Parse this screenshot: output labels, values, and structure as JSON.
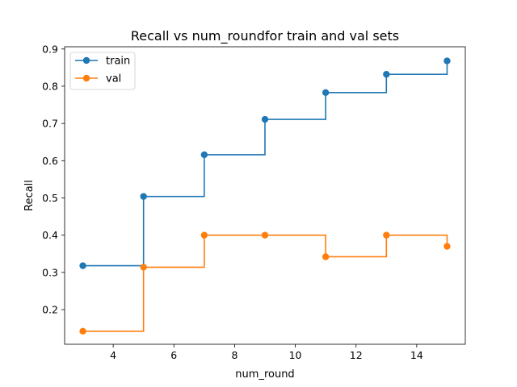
{
  "chart_data": {
    "type": "line",
    "title": "Recall vs num_roundfor train and val sets",
    "xlabel": "num_round",
    "ylabel": "Recall",
    "xlim": [
      2.4,
      15.6
    ],
    "ylim": [
      0.107,
      0.906
    ],
    "xticks": [
      4,
      6,
      8,
      10,
      12,
      14
    ],
    "yticks": [
      0.2,
      0.3,
      0.4,
      0.5,
      0.6,
      0.7,
      0.8,
      0.9
    ],
    "xtick_labels": [
      "4",
      "6",
      "8",
      "10",
      "12",
      "14"
    ],
    "ytick_labels": [
      "0.2",
      "0.3",
      "0.4",
      "0.5",
      "0.6",
      "0.7",
      "0.8",
      "0.9"
    ],
    "grid": false,
    "legend_position": "top-left",
    "step": "post",
    "x": [
      3,
      5,
      7,
      9,
      11,
      13,
      15
    ],
    "series": [
      {
        "name": "train",
        "color": "#1f77b4",
        "values": [
          0.318,
          0.504,
          0.616,
          0.711,
          0.783,
          0.832,
          0.868
        ]
      },
      {
        "name": "val",
        "color": "#ff7f0e",
        "values": [
          0.142,
          0.314,
          0.4,
          0.4,
          0.342,
          0.4,
          0.37
        ]
      }
    ]
  }
}
